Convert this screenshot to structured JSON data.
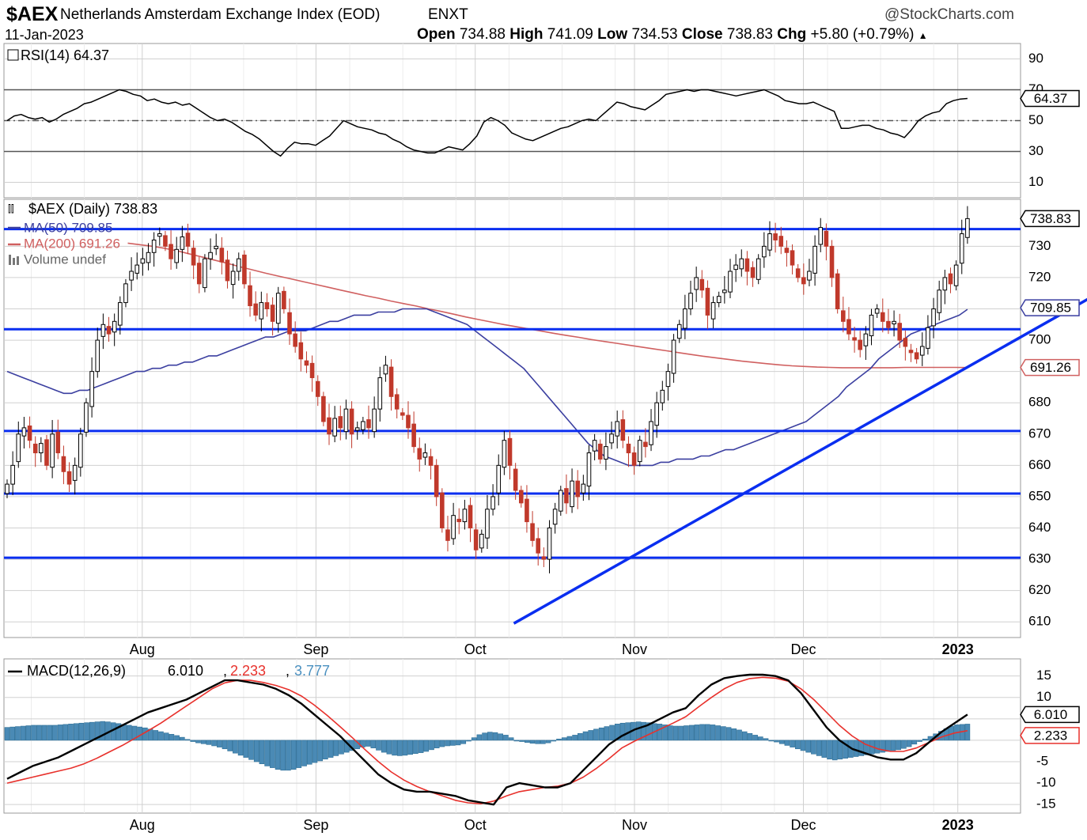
{
  "header": {
    "symbol": "$AEX",
    "name": "Netherlands Amsterdam Exchange Index (EOD)",
    "exchange": "ENXT",
    "date": "11-Jan-2023",
    "watermark": "@StockCharts.com",
    "ohlc": {
      "open_label": "Open",
      "open": "734.88",
      "high_label": "High",
      "high": "741.09",
      "low_label": "Low",
      "low": "734.53",
      "close_label": "Close",
      "close": "738.83",
      "chg_label": "Chg",
      "chg": "+5.80 (+0.79%)"
    },
    "up_arrow_icon": "triangle-up-icon"
  },
  "colors": {
    "up_candle": "#ffffff",
    "down_candle": "#c0392b",
    "candle_outline": "#000000",
    "ma50": "#3b3fa0",
    "ma200": "#d06060",
    "support_lines": "#0a2ef0",
    "macd_line": "#000000",
    "signal_line": "#e8312c",
    "histogram": "#4a8ab5",
    "grid": "#d0d0d0"
  },
  "chart_data": [
    {
      "type": "line",
      "panel": "rsi",
      "legend": "RSI(14) 64.37",
      "current_label": "64.37",
      "ylim": [
        0,
        100
      ],
      "ticks": [
        "90",
        "70",
        "50",
        "30",
        "10"
      ],
      "reference_levels": [
        70,
        50,
        30
      ],
      "values": [
        50,
        53,
        54,
        52,
        51,
        52,
        49,
        51,
        54,
        56,
        58,
        61,
        62,
        64,
        66,
        68,
        70,
        69,
        67,
        66,
        63,
        64,
        62,
        61,
        62,
        60,
        61,
        58,
        55,
        52,
        50,
        51,
        49,
        46,
        43,
        41,
        38,
        34,
        30,
        27,
        32,
        36,
        35,
        35,
        34,
        37,
        40,
        45,
        50,
        48,
        46,
        45,
        44,
        42,
        41,
        38,
        36,
        33,
        31,
        30,
        29,
        29,
        31,
        33,
        32,
        31,
        35,
        40,
        49,
        52,
        50,
        47,
        42,
        40,
        38,
        37,
        39,
        41,
        43,
        45,
        46,
        48,
        50,
        51,
        50,
        54,
        58,
        62,
        61,
        59,
        58,
        57,
        60,
        63,
        67,
        68,
        69,
        70,
        69,
        70,
        70,
        69,
        68,
        67,
        66,
        67,
        68,
        69,
        70,
        68,
        66,
        63,
        62,
        61,
        61,
        62,
        60,
        58,
        56,
        45,
        45,
        46,
        47,
        47,
        45,
        44,
        42,
        41,
        39,
        44,
        50,
        53,
        55,
        56,
        61,
        63,
        64,
        64.37
      ]
    },
    {
      "type": "candlestick",
      "panel": "price",
      "legend": {
        "price": "$AEX (Daily) 738.83",
        "ma50": "MA(50) 709.85",
        "ma200": "MA(200) 691.26",
        "volume": "Volume undef"
      },
      "price_labels": {
        "close": "738.83",
        "ma50": "709.85",
        "ma200": "691.26"
      },
      "ylim": [
        605,
        745
      ],
      "ticks": [
        "730",
        "720",
        "710",
        "700",
        "690",
        "680",
        "670",
        "660",
        "650",
        "640",
        "630",
        "620",
        "610"
      ],
      "x_labels": [
        "Aug",
        "Sep",
        "Oct",
        "Nov",
        "Dec",
        "2023"
      ],
      "x_label_index": [
        28,
        64,
        97,
        130,
        165,
        197
      ],
      "horizontal_lines": [
        735.5,
        703.5,
        671,
        651,
        630.5
      ],
      "trend_line": {
        "from": [
          105,
          609.5
        ],
        "to": [
          233,
          721
        ]
      },
      "closes": [
        654,
        660,
        670,
        672,
        668,
        664,
        667,
        660,
        670,
        664,
        658,
        654,
        660,
        670,
        680,
        690,
        700,
        705,
        702,
        706,
        712,
        718,
        722,
        724,
        726,
        728,
        732,
        734,
        730,
        726,
        729,
        733,
        730,
        724,
        718,
        726,
        728,
        730,
        725,
        719,
        722,
        726,
        718,
        711,
        708,
        712,
        710,
        706,
        715,
        710,
        702,
        698,
        694,
        692,
        688,
        682,
        674,
        670,
        675,
        672,
        678,
        670,
        672,
        674,
        672,
        678,
        688,
        692,
        682,
        678,
        676,
        672,
        666,
        662,
        664,
        660,
        650,
        640,
        636,
        644,
        642,
        646,
        640,
        633,
        638,
        646,
        650,
        660,
        668,
        660,
        652,
        648,
        642,
        636,
        632,
        630,
        640,
        646,
        652,
        648,
        655,
        650,
        654,
        664,
        668,
        662,
        666,
        670,
        674,
        668,
        664,
        660,
        668,
        666,
        674,
        680,
        684,
        690,
        700,
        705,
        710,
        715,
        720,
        716,
        708,
        712,
        714,
        716,
        722,
        724,
        726,
        722,
        720,
        726,
        730,
        734,
        732,
        730,
        728,
        724,
        720,
        718,
        722,
        730,
        736,
        730,
        720,
        710,
        706,
        702,
        700,
        697,
        702,
        708,
        710,
        706,
        704,
        706,
        700,
        698,
        696,
        694,
        698,
        704,
        710,
        716,
        720,
        718,
        724,
        734,
        738.83
      ],
      "ma50": [
        690,
        689,
        688,
        687,
        686,
        685,
        684,
        683,
        683,
        684,
        684,
        685,
        686,
        687,
        688,
        689,
        690,
        690,
        691,
        691,
        692,
        692,
        693,
        693,
        694,
        695,
        695,
        696,
        697,
        698,
        699,
        700,
        701,
        701,
        702,
        703,
        703,
        703,
        704,
        705,
        706,
        706,
        707,
        708,
        708,
        708,
        709,
        709,
        709,
        710,
        710,
        710,
        710,
        709,
        708,
        707,
        706,
        705,
        703,
        701,
        699,
        697,
        695,
        693,
        691,
        688,
        685,
        682,
        679,
        676,
        673,
        670,
        667,
        665,
        663,
        662,
        661,
        660,
        660,
        660,
        660,
        661,
        661,
        662,
        662,
        662,
        663,
        663,
        664,
        665,
        665,
        666,
        667,
        668,
        669,
        670,
        671,
        672,
        673,
        674,
        676,
        678,
        680,
        682,
        685,
        687,
        689,
        691,
        694,
        696,
        698,
        700,
        702,
        703,
        704,
        705,
        706,
        707,
        708,
        709.85
      ],
      "ma200": [
        731,
        730.5,
        730,
        729.3,
        728.5,
        727.5,
        726.5,
        725.5,
        724.5,
        723.4,
        722.4,
        721.4,
        720.5,
        719.6,
        718.7,
        717.8,
        716.9,
        716,
        715.1,
        714.2,
        713.4,
        712.5,
        711.7,
        710.9,
        710,
        709.2,
        708.3,
        707.4,
        706.6,
        705.8,
        705,
        704.3,
        703.6,
        702.9,
        702.2,
        701.5,
        700.9,
        700.2,
        699.6,
        699,
        698.4,
        697.8,
        697.2,
        696.6,
        696,
        695.4,
        694.8,
        694.3,
        693.8,
        693.3,
        692.9,
        692.5,
        692.1,
        691.8,
        691.6,
        691.4,
        691.3,
        691.2,
        691.2,
        691.2,
        691.2,
        691.2,
        691.3,
        691.3,
        691.3,
        691.3,
        691.3,
        691.26
      ]
    },
    {
      "type": "line",
      "panel": "macd",
      "legend": {
        "title": "MACD(12,26,9)",
        "macd": "6.010",
        "signal": "2.233",
        "histogram": "3.777"
      },
      "price_labels": {
        "macd": "6.010",
        "signal": "2.233"
      },
      "ylim": [
        -17,
        19
      ],
      "ticks": [
        "15",
        "10",
        "5",
        "0",
        "-5",
        "-10",
        "-15"
      ],
      "x_labels": [
        "Aug",
        "Sep",
        "Oct",
        "Nov",
        "Dec",
        "2023"
      ],
      "series": [
        {
          "name": "MACD",
          "values": [
            -9,
            -7.5,
            -6,
            -5,
            -4,
            -2.5,
            -1,
            0.5,
            2,
            3.5,
            5,
            6.5,
            7.5,
            8.5,
            9.5,
            11,
            12.5,
            14,
            14,
            13.5,
            13,
            12,
            10.5,
            8.5,
            6,
            3.5,
            1,
            -2,
            -5,
            -8,
            -10,
            -11.5,
            -12,
            -12,
            -12.5,
            -13,
            -14,
            -14.5,
            -15,
            -11,
            -10,
            -10.5,
            -11,
            -11,
            -10,
            -7,
            -4,
            -1,
            1,
            2.5,
            3.5,
            5,
            6.5,
            7.5,
            10.5,
            13,
            14.5,
            15,
            15.3,
            15.3,
            15,
            14,
            11,
            7,
            3,
            0,
            -2,
            -3,
            -4,
            -4.5,
            -4.5,
            -3,
            -0.5,
            2,
            4,
            6.01
          ]
        },
        {
          "name": "Signal",
          "values": [
            -10,
            -9.3,
            -8.6,
            -7.9,
            -7.2,
            -6.5,
            -5.5,
            -4.2,
            -2.7,
            -1.2,
            0.5,
            2.2,
            4,
            6,
            8,
            10,
            12,
            13.4,
            14,
            14,
            13.5,
            12.8,
            11.8,
            10.3,
            8.2,
            5.8,
            3.2,
            0.5,
            -2.3,
            -5,
            -7.4,
            -9.3,
            -10.8,
            -12,
            -13,
            -14,
            -14.6,
            -14.8,
            -14.2,
            -13,
            -12,
            -11.5,
            -11,
            -10.7,
            -10,
            -8.6,
            -6.6,
            -4.3,
            -1.8,
            -0.2,
            1.2,
            2.6,
            4,
            5.5,
            7.8,
            10,
            12,
            13.5,
            14.4,
            14.7,
            14.5,
            13.8,
            12,
            9.5,
            6.5,
            3.5,
            1,
            -0.9,
            -2,
            -2.6,
            -2.6,
            -1.8,
            -0.5,
            0.8,
            1.7,
            2.233
          ]
        },
        {
          "name": "Histogram",
          "values": [
            3.0,
            3.1,
            3.2,
            3.3,
            3.4,
            3.5,
            3.5,
            3.5,
            3.5,
            3.5,
            3.6,
            3.7,
            3.8,
            3.9,
            4.0,
            4.1,
            4.2,
            4.3,
            4.4,
            4.3,
            4.1,
            3.9,
            3.7,
            3.5,
            3.3,
            3.1,
            2.9,
            2.6,
            2.3,
            2.0,
            1.7,
            1.4,
            1.1,
            0.7,
            0.2,
            -0.3,
            -0.6,
            -0.8,
            -1.0,
            -1.3,
            -1.6,
            -2.0,
            -2.5,
            -3.0,
            -3.5,
            -4.0,
            -4.5,
            -5.0,
            -5.5,
            -6.0,
            -6.4,
            -6.8,
            -7.0,
            -7.0,
            -6.8,
            -6.4,
            -6.0,
            -5.6,
            -5.2,
            -4.8,
            -4.4,
            -4.0,
            -3.6,
            -3.2,
            -2.8,
            -2.4,
            -2.0,
            -1.6,
            -1.4,
            -1.8,
            -2.3,
            -2.8,
            -3.2,
            -3.5,
            -3.6,
            -3.5,
            -3.3,
            -3.1,
            -2.9,
            -2.6,
            -2.2,
            -1.8,
            -1.5,
            -1.3,
            -1.2,
            -1.1,
            -0.8,
            -0.2,
            0.6,
            1.3,
            1.7,
            1.9,
            1.8,
            1.5,
            1.2,
            0.6,
            -0.1,
            -0.3,
            -0.5,
            -0.7,
            -0.8,
            -0.8,
            -0.6,
            -0.2,
            0.3,
            0.6,
            0.9,
            1.2,
            1.6,
            2.0,
            2.3,
            2.6,
            2.9,
            3.2,
            3.5,
            3.8,
            4.0,
            4.1,
            4.2,
            4.3,
            4.2,
            4.1,
            3.9,
            3.8,
            3.6,
            3.4,
            3.3,
            3.3,
            3.4,
            3.5,
            3.6,
            3.7,
            3.7,
            3.6,
            3.4,
            3.2,
            3.0,
            2.7,
            2.4,
            2.0,
            1.6,
            1.2,
            0.8,
            0.4,
            0.0,
            -0.4,
            -0.8,
            -1.2,
            -1.6,
            -2.0,
            -2.4,
            -2.8,
            -3.2,
            -3.6,
            -4.0,
            -4.4,
            -4.6,
            -4.4,
            -4.2,
            -4.0,
            -3.8,
            -3.6,
            -3.4,
            -3.2,
            -3.0,
            -2.8,
            -2.6,
            -2.4,
            -2.2,
            -1.9,
            -1.5,
            -0.9,
            -0.3,
            0.3,
            0.9,
            1.5,
            2.1,
            2.7,
            3.3,
            3.6,
            3.7,
            3.777
          ]
        }
      ]
    }
  ]
}
